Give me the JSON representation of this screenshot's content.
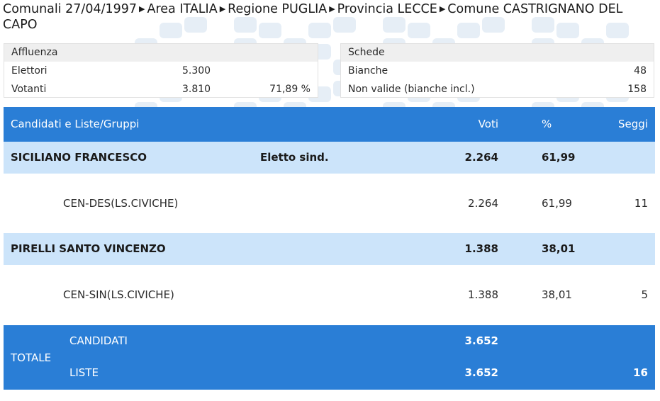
{
  "breadcrumb": {
    "items": [
      "Comunali 27/04/1997",
      "Area ITALIA",
      "Regione PUGLIA",
      "Provincia LECCE",
      "Comune CASTRIGNANO DEL CAPO"
    ],
    "separator_icon": "triangle-right-icon",
    "separator_glyph": "▶"
  },
  "affluenza": {
    "title": "Affluenza",
    "rows": [
      {
        "label": "Elettori",
        "value": "5.300",
        "extra": ""
      },
      {
        "label": "Votanti",
        "value": "3.810",
        "extra": "71,89 %"
      }
    ]
  },
  "schede": {
    "title": "Schede",
    "rows": [
      {
        "label": "Bianche",
        "value": "48"
      },
      {
        "label": "Non valide (bianche incl.)",
        "value": "158"
      }
    ]
  },
  "table": {
    "headers": {
      "name": "Candidati e Liste/Gruppi",
      "voti": "Voti",
      "pct": "%",
      "seggi": "Seggi"
    },
    "candidates": [
      {
        "name": "SICILIANO FRANCESCO",
        "note": "Eletto sind.",
        "voti": "2.264",
        "pct": "61,99",
        "list": {
          "name": "CEN-DES(LS.CIVICHE)",
          "voti": "2.264",
          "pct": "61,99",
          "seggi": "11"
        }
      },
      {
        "name": "PIRELLI SANTO VINCENZO",
        "note": "",
        "voti": "1.388",
        "pct": "38,01",
        "list": {
          "name": "CEN-SIN(LS.CIVICHE)",
          "voti": "1.388",
          "pct": "38,01",
          "seggi": "5"
        }
      }
    ],
    "totale": {
      "label": "TOTALE",
      "candidati_label": "CANDIDATI",
      "candidati_voti": "3.652",
      "liste_label": "LISTE",
      "liste_voti": "3.652",
      "liste_seggi": "16"
    }
  },
  "colors": {
    "header_blue": "#2a7ed6",
    "candidate_row": "#cce4fa",
    "box_head": "#efefef"
  }
}
